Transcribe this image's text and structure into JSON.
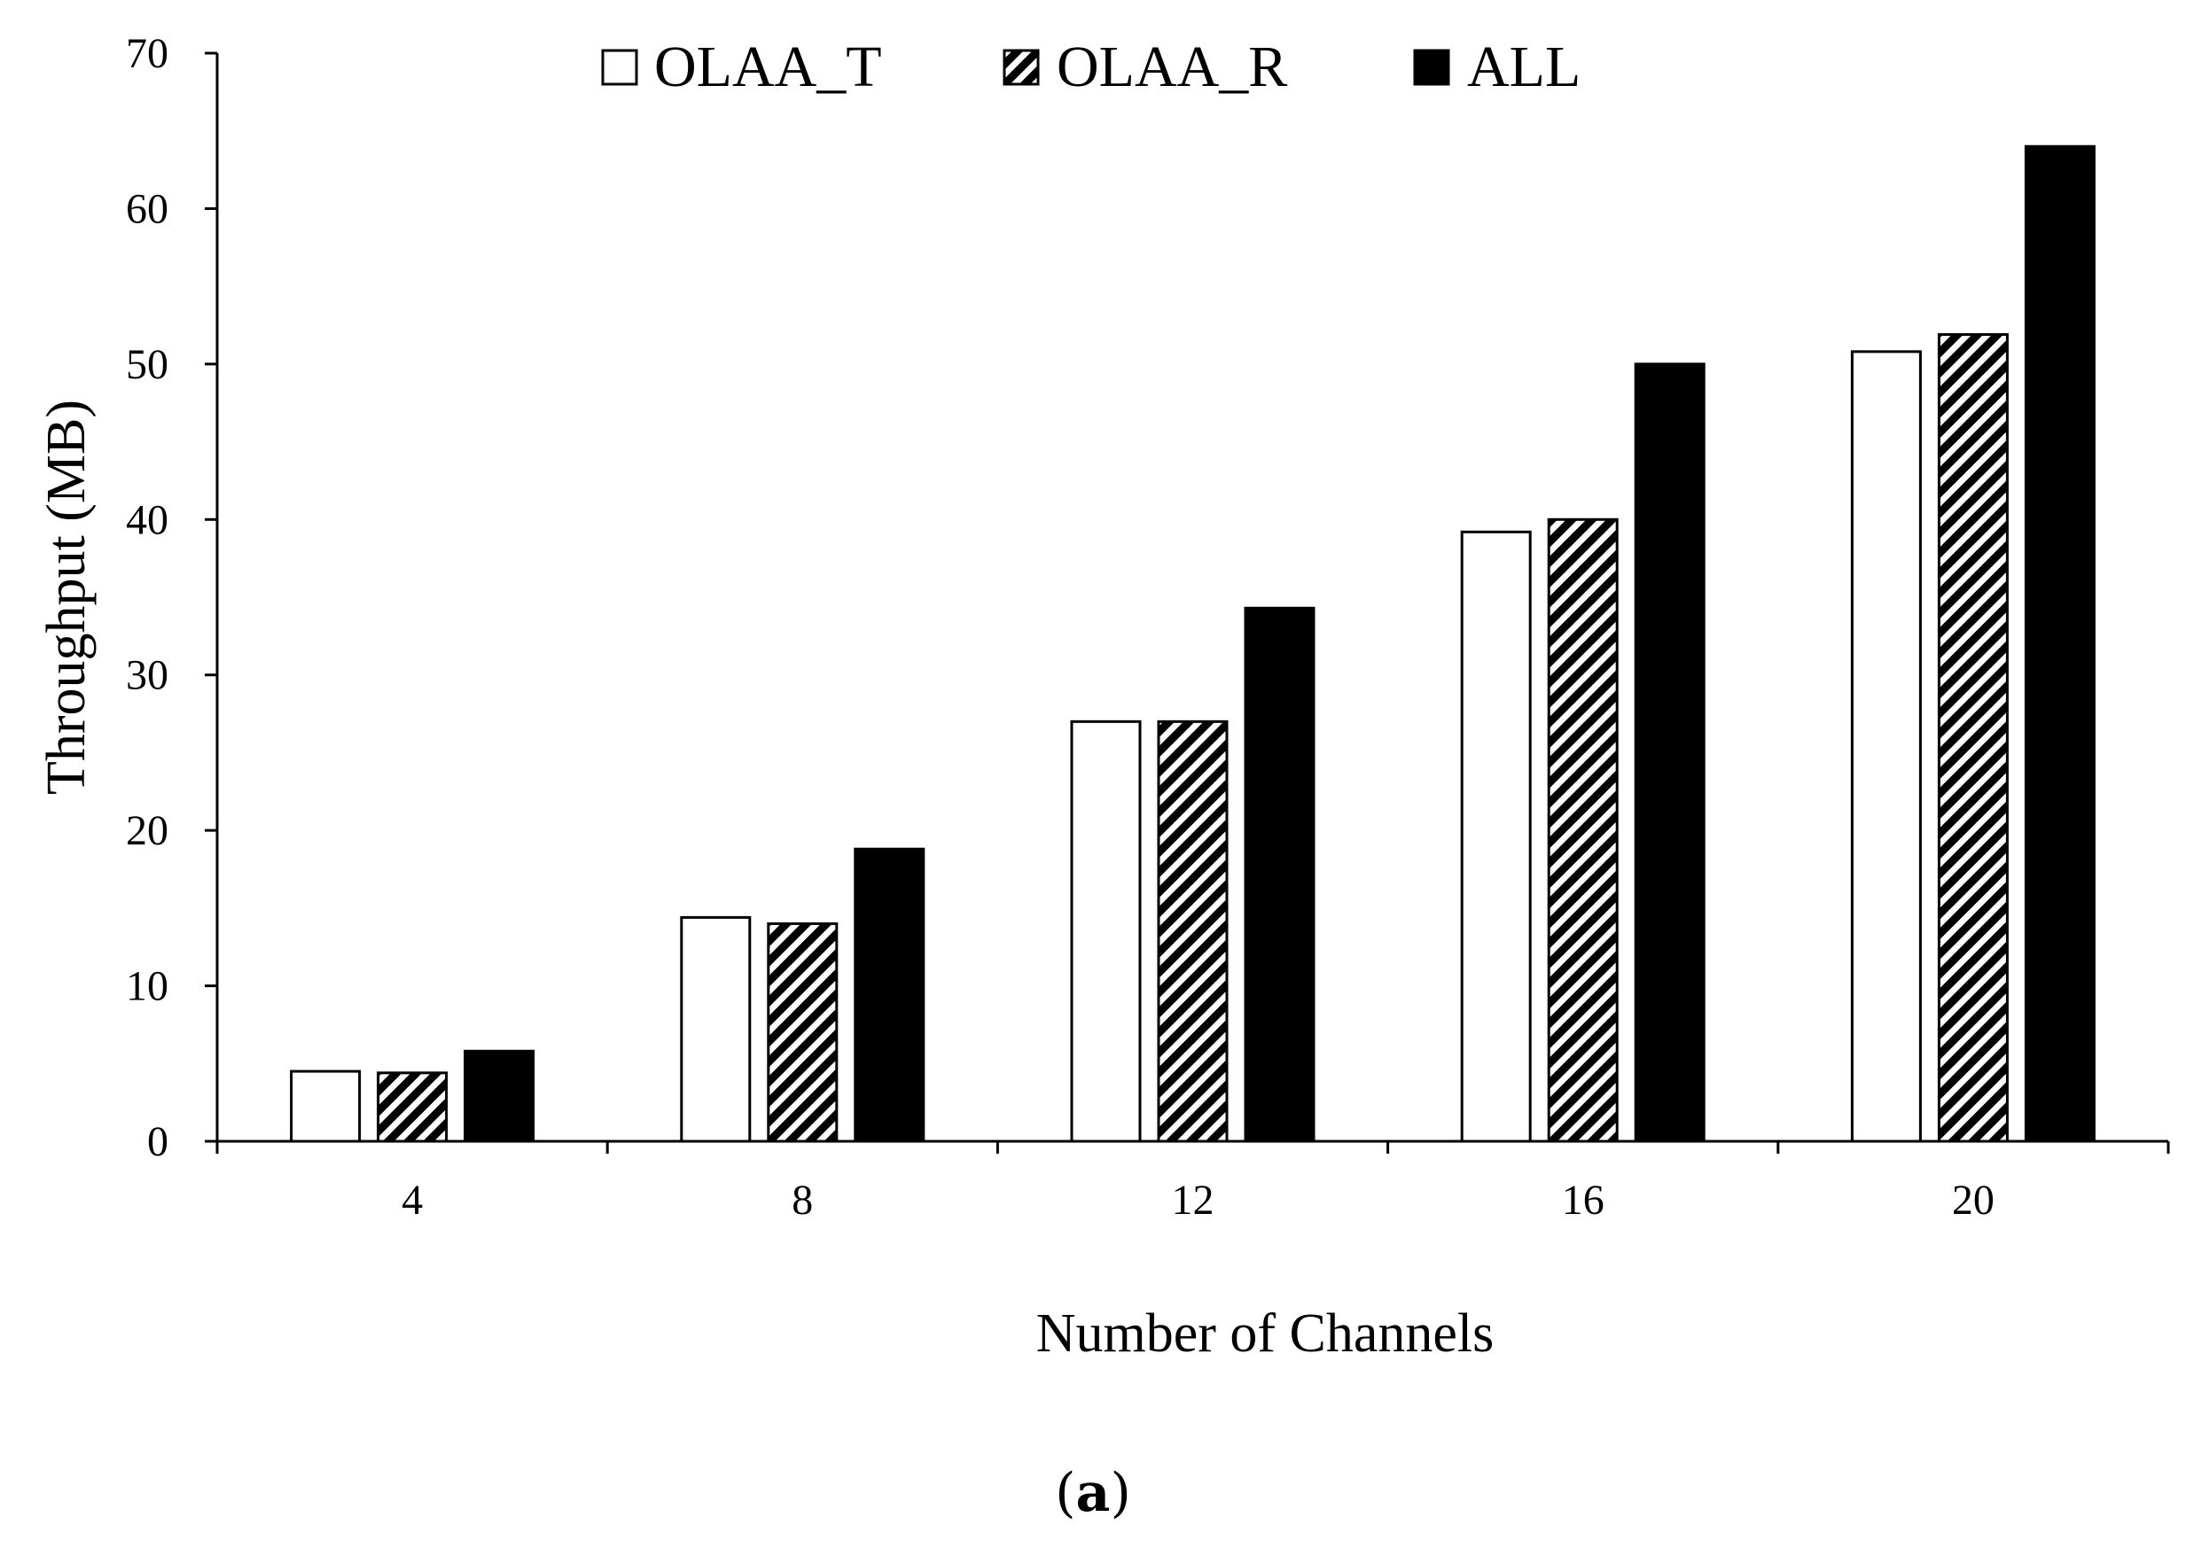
{
  "chart_data": {
    "type": "bar",
    "xlabel": "Number of Channels",
    "ylabel": "Throughput (MB)",
    "categories": [
      "4",
      "8",
      "12",
      "16",
      "20"
    ],
    "ylim": [
      0,
      70
    ],
    "yticks": [
      "0",
      "10",
      "20",
      "30",
      "40",
      "50",
      "60",
      "70"
    ],
    "legend_position": "top-center",
    "grid": false,
    "series": [
      {
        "name": "OLAA_T",
        "fill": "white",
        "values": [
          4.5,
          14.4,
          27.0,
          39.2,
          50.8
        ]
      },
      {
        "name": "OLAA_R",
        "fill": "hatched",
        "values": [
          4.4,
          14.0,
          27.0,
          40.0,
          51.9
        ]
      },
      {
        "name": "ALL",
        "fill": "black",
        "values": [
          5.8,
          18.8,
          34.3,
          50.0,
          64.0
        ]
      }
    ]
  },
  "caption": {
    "open": "(",
    "letter": "a",
    "close": ")"
  },
  "colors": {
    "bar_fill_white": "#ffffff",
    "bar_fill_black": "#000000",
    "stroke": "#000000"
  }
}
